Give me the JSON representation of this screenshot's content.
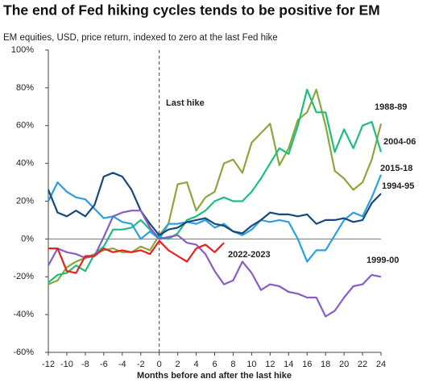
{
  "chart_data": {
    "type": "line",
    "title": "The end of Fed hiking cycles tends to be positive for EM",
    "subtitle": "EM equities, USD, price return, indexed to zero at the last Fed hike",
    "xlabel": "Months before and after the last hike",
    "annotation": "Last hike",
    "x": [
      -12,
      -11,
      -10,
      -9,
      -8,
      -7,
      -6,
      -5,
      -4,
      -3,
      -2,
      -1,
      0,
      1,
      2,
      3,
      4,
      5,
      6,
      7,
      8,
      9,
      10,
      11,
      12,
      13,
      14,
      15,
      16,
      17,
      18,
      19,
      20,
      21,
      22,
      23,
      24
    ],
    "xlim": [
      -12,
      24
    ],
    "xticks": [
      -12,
      -10,
      -8,
      -6,
      -4,
      -2,
      0,
      2,
      4,
      6,
      8,
      10,
      12,
      14,
      16,
      18,
      20,
      22,
      24
    ],
    "ylim": [
      -60,
      100
    ],
    "yticks": [
      {
        "value": -60,
        "label": "-60%"
      },
      {
        "value": -40,
        "label": "-40%"
      },
      {
        "value": -20,
        "label": "-20%"
      },
      {
        "value": 0,
        "label": "0%"
      },
      {
        "value": 20,
        "label": "20%"
      },
      {
        "value": 40,
        "label": "40%"
      },
      {
        "value": 60,
        "label": "60%"
      },
      {
        "value": 80,
        "label": "80%"
      },
      {
        "value": 100,
        "label": "100%"
      }
    ],
    "series": [
      {
        "name": "1988-89",
        "color": "#8aa83a",
        "values": [
          -24,
          -22,
          -15,
          -12,
          -10,
          -8,
          -6,
          -5,
          -7,
          -7,
          -4,
          -6,
          2,
          8,
          29,
          30,
          15,
          22,
          25,
          40,
          42,
          35,
          51,
          56,
          61,
          39,
          48,
          63,
          67,
          79,
          60,
          36,
          32,
          26,
          30,
          42,
          61
        ]
      },
      {
        "name": "2004-06",
        "color": "#1dbf7c",
        "values": [
          -23,
          -19,
          -18,
          -14,
          -17,
          -8,
          -4,
          5,
          5,
          6,
          10,
          5,
          1,
          0,
          3,
          10,
          12,
          15,
          20,
          22,
          20,
          20,
          25,
          32,
          40,
          48,
          45,
          60,
          79,
          67,
          67,
          46,
          58,
          48,
          60,
          62,
          46
        ]
      },
      {
        "name": "2015-18",
        "color": "#2b9fe2",
        "values": [
          20,
          30,
          25,
          22,
          21,
          16,
          11,
          12,
          9,
          8,
          0,
          4,
          0,
          8,
          8,
          9,
          8,
          10,
          6,
          8,
          4,
          2,
          5,
          10,
          9,
          10,
          9,
          0,
          -12,
          -6,
          -6,
          2,
          10,
          14,
          12,
          22,
          34
        ]
      },
      {
        "name": "1994-95",
        "color": "#17497c",
        "values": [
          26,
          14,
          12,
          15,
          12,
          18,
          33,
          35,
          33,
          26,
          15,
          8,
          2,
          5,
          6,
          9,
          10,
          11,
          8,
          7,
          4,
          3,
          7,
          10,
          14,
          13,
          13,
          12,
          13,
          8,
          10,
          10,
          11,
          9,
          10,
          19,
          24
        ]
      },
      {
        "name": "1999-00",
        "color": "#8a5cc9",
        "values": [
          -14,
          -5,
          -7,
          -8,
          -10,
          -9,
          1,
          12,
          14,
          15,
          15,
          6,
          0,
          1,
          2,
          -2,
          -3,
          -8,
          -17,
          -24,
          -22,
          -12,
          -18,
          -27,
          -24,
          -25,
          -28,
          -29,
          -31,
          -31,
          -41,
          -38,
          -31,
          -25,
          -24,
          -19,
          -20
        ]
      },
      {
        "name": "2022-2023",
        "color": "#e8211d",
        "values": [
          -5,
          -5,
          -17,
          -18,
          -9,
          -9,
          -5,
          -7,
          -6,
          -7,
          -6,
          -8,
          -1,
          -6,
          -9,
          -12,
          -5,
          -3,
          -7,
          -2,
          null,
          null,
          null,
          null,
          null,
          null,
          null,
          null,
          null,
          null,
          null,
          null,
          null,
          null,
          null,
          null,
          null
        ]
      }
    ]
  }
}
